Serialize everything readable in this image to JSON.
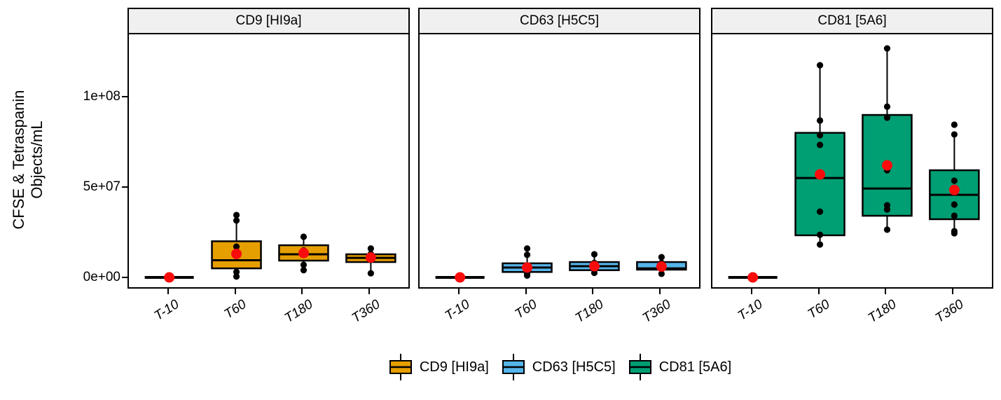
{
  "chart_data": {
    "type": "boxplot",
    "title": "",
    "xlabel": "",
    "ylabel": "CFSE & Tetraspanin Objects/mL",
    "ylabel_lines": [
      "CFSE & Tetraspanin",
      "Objects/mL"
    ],
    "x_categories": [
      "T-10",
      "T60",
      "T180",
      "T360"
    ],
    "y_axis": {
      "ticks": [
        {
          "label": "0e+00",
          "value": 0
        },
        {
          "label": "5e+07",
          "value": 50000000.0
        },
        {
          "label": "1e+08",
          "value": 100000000.0
        }
      ],
      "range": [
        -6200000.0,
        134500000.0
      ],
      "grid": false
    },
    "style": {
      "mean_point_color": "#FA0C0C",
      "data_point_color": "#000000",
      "box_stroke_color": "#000000",
      "panel_header_bg": "#f0f0f0"
    },
    "facets": [
      {
        "title": "CD9 [HI9a]",
        "fill": "#E69F00",
        "boxes": [
          {
            "category": "T-10",
            "min": 0,
            "q1": 0,
            "median": 0,
            "q3": 0,
            "max": 0,
            "mean": 0,
            "points": [
              0
            ]
          },
          {
            "category": "T60",
            "min": 500000.0,
            "q1": 5000000.0,
            "median": 9500000.0,
            "q3": 20000000.0,
            "max": 31500000.0,
            "mean": 13000000.0,
            "points": [
              34500000.0,
              31500000.0,
              17000000.0,
              3000000.0,
              500000.0
            ]
          },
          {
            "category": "T180",
            "min": 4000000.0,
            "q1": 9300000.0,
            "median": 12800000.0,
            "q3": 17800000.0,
            "max": 22500000.0,
            "mean": 13500000.0,
            "points": [
              22500000.0,
              15000000.0,
              7000000.0,
              4000000.0
            ]
          },
          {
            "category": "T360",
            "min": 2300000.0,
            "q1": 8500000.0,
            "median": 10800000.0,
            "q3": 12800000.0,
            "max": 16000000.0,
            "mean": 11000000.0,
            "points": [
              16000000.0,
              13000000.0,
              2300000.0
            ]
          }
        ]
      },
      {
        "title": "CD63 [H5C5]",
        "fill": "#56B4E9",
        "boxes": [
          {
            "category": "T-10",
            "min": 0,
            "q1": 0,
            "median": 0,
            "q3": 0,
            "max": 0,
            "mean": 0,
            "points": [
              0
            ]
          },
          {
            "category": "T60",
            "min": 1000000.0,
            "q1": 3000000.0,
            "median": 5500000.0,
            "q3": 7800000.0,
            "max": 12500000.0,
            "mean": 5500000.0,
            "points": [
              16000000.0,
              12500000.0,
              2000000.0,
              1000000.0
            ]
          },
          {
            "category": "T180",
            "min": 2500000.0,
            "q1": 4000000.0,
            "median": 6200000.0,
            "q3": 8500000.0,
            "max": 12800000.0,
            "mean": 6200000.0,
            "points": [
              12800000.0,
              8000000.0,
              2500000.0
            ]
          },
          {
            "category": "T360",
            "min": 2000000.0,
            "q1": 4300000.0,
            "median": 5000000.0,
            "q3": 8500000.0,
            "max": 11200000.0,
            "mean": 6000000.0,
            "points": [
              11200000.0,
              8000000.0,
              2000000.0
            ]
          }
        ]
      },
      {
        "title": "CD81 [5A6]",
        "fill": "#009E73",
        "boxes": [
          {
            "category": "T-10",
            "min": 0,
            "q1": 0,
            "median": 0,
            "q3": 0,
            "max": 0,
            "mean": 0,
            "points": [
              0
            ]
          },
          {
            "category": "T60",
            "min": 18200000.0,
            "q1": 23300000.0,
            "median": 55000000.0,
            "q3": 80000000.0,
            "max": 117400000.0,
            "mean": 57000000.0,
            "points": [
              117400000.0,
              86800000.0,
              78700000.0,
              73300000.0,
              36400000.0,
              23600000.0,
              18200000.0
            ]
          },
          {
            "category": "T180",
            "min": 26400000.0,
            "q1": 34100000.0,
            "median": 49200000.0,
            "q3": 89900000.0,
            "max": 126700000.0,
            "mean": 62000000.0,
            "points": [
              126700000.0,
              94500000.0,
              88400000.0,
              59300000.0,
              39900000.0,
              37600000.0,
              26400000.0
            ]
          },
          {
            "category": "T360",
            "min": 24400000.0,
            "q1": 32200000.0,
            "median": 45700000.0,
            "q3": 59300000.0,
            "max": 79100000.0,
            "mean": 48400000.0,
            "points": [
              84500000.0,
              79100000.0,
              53500000.0,
              40300000.0,
              34100000.0,
              25600000.0,
              24400000.0
            ]
          }
        ]
      }
    ],
    "legend": {
      "position": "bottom",
      "items": [
        {
          "label": "CD9 [HI9a]",
          "color": "#E69F00"
        },
        {
          "label": "CD63 [H5C5]",
          "color": "#56B4E9"
        },
        {
          "label": "CD81 [5A6]",
          "color": "#009E73"
        }
      ]
    }
  }
}
